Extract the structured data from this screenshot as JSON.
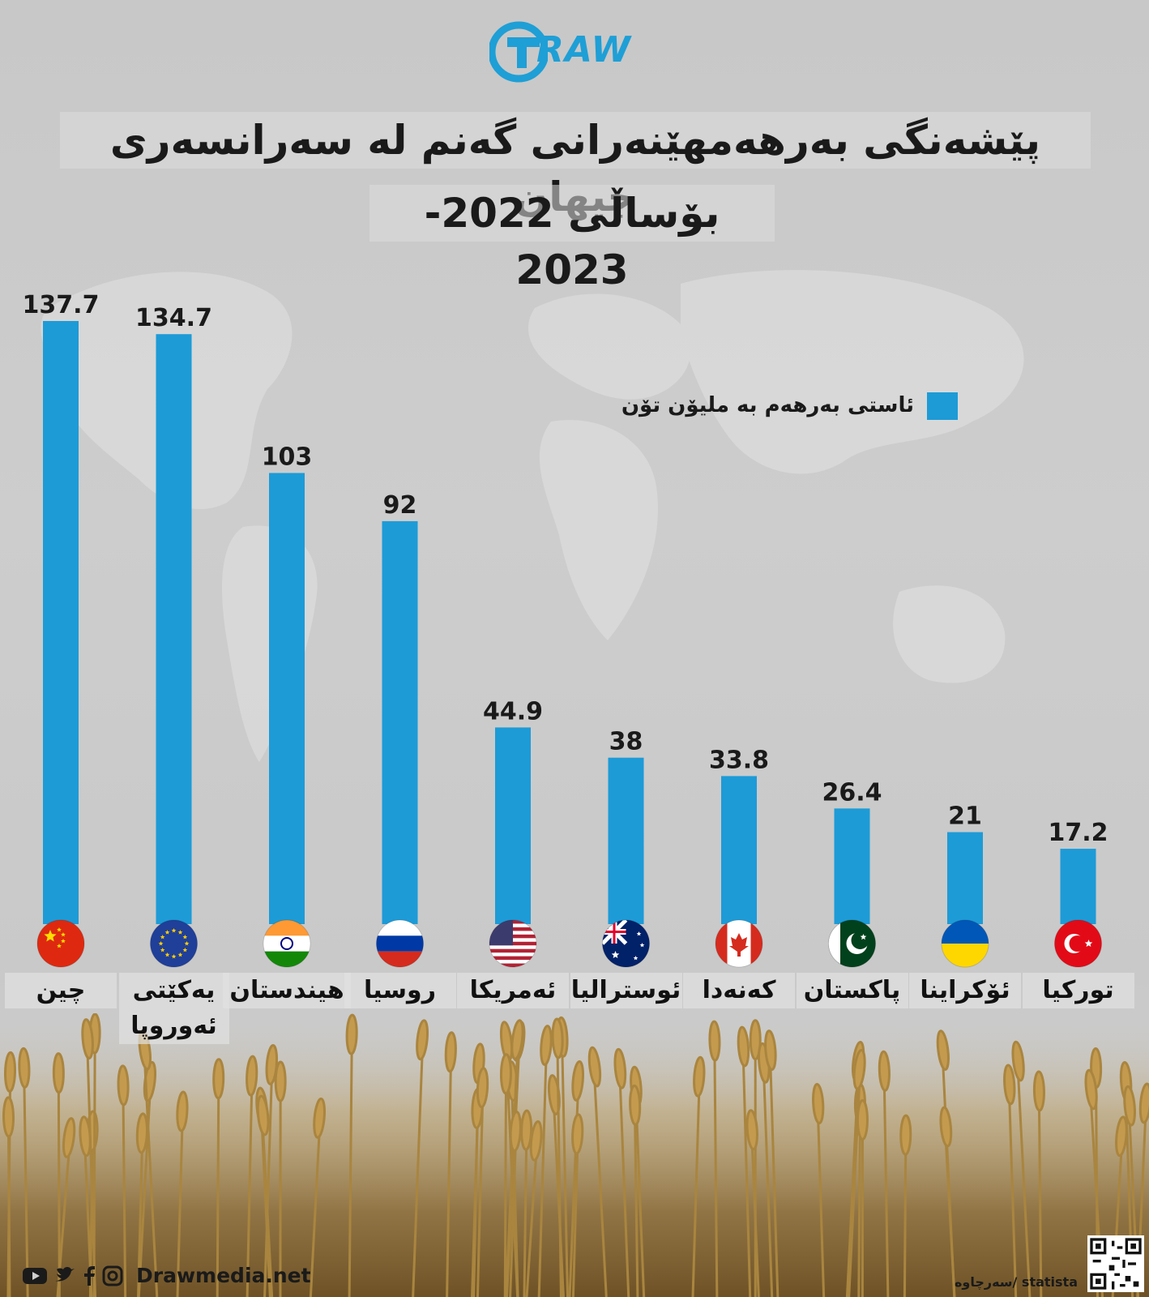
{
  "brand": {
    "logo_text": "RAW",
    "website": "Drawmedia.net"
  },
  "title": "پێشەنگی بەرهەمهێنەرانی گەنم لە سەرانسەری جیهان",
  "subtitle": "بۆساڵی 2022-2023",
  "legend": {
    "label": "ئاستی بەرهەم بە ملیۆن تۆن",
    "color": "#1d9bd7"
  },
  "source": "سەرچاوە/ statista",
  "social_icons": [
    "youtube-icon",
    "twitter-icon",
    "facebook-icon",
    "instagram-icon"
  ],
  "chart_data": {
    "type": "bar",
    "categories": [
      "چین",
      "یەکێتی ئەوروپا",
      "هیندستان",
      "روسیا",
      "ئەمریکا",
      "ئوستراليا",
      "کەنەدا",
      "پاکستان",
      "ئۆکراینا",
      "تورکیا"
    ],
    "flags": [
      "china-flag-icon",
      "eu-flag-icon",
      "india-flag-icon",
      "russia-flag-icon",
      "usa-flag-icon",
      "australia-flag-icon",
      "canada-flag-icon",
      "pakistan-flag-icon",
      "ukraine-flag-icon",
      "turkey-flag-icon"
    ],
    "values": [
      137.7,
      134.7,
      103,
      92,
      44.9,
      38,
      33.8,
      26.4,
      21,
      17.2
    ],
    "value_labels": [
      "137.7",
      "134.7",
      "103",
      "92",
      "44.9",
      "38",
      "33.8",
      "26.4",
      "21",
      "17.2"
    ],
    "bar_color": "#1d9bd7",
    "grid": false,
    "legend_position": "top-right",
    "ylabel": "",
    "xlabel": ""
  }
}
